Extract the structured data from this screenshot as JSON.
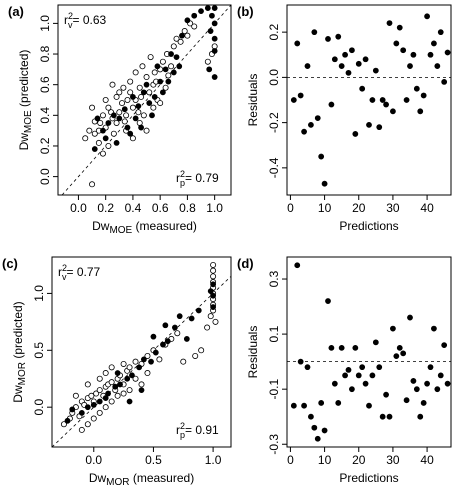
{
  "panels": [
    {
      "key": "a",
      "tag": "(a)",
      "type": "scatter",
      "xlabel_main": "Dw",
      "xlabel_sub": "MOE",
      "xlabel_tail": " (measured)",
      "ylabel_main": "Dw",
      "ylabel_sub": "MOE",
      "ylabel_tail": " (predicted)",
      "xlim": [
        -0.15,
        1.12
      ],
      "ylim": [
        -0.12,
        1.12
      ],
      "xticks": [
        0.0,
        0.2,
        0.4,
        0.6,
        0.8,
        1.0
      ],
      "xticklabels": [
        "0.0",
        "0.2",
        "0.4",
        "0.6",
        "0.8",
        "1.0"
      ],
      "yticks": [
        0.0,
        0.2,
        0.4,
        0.6,
        0.8,
        1.0
      ],
      "yticklabels": [
        "0.0",
        "0.2",
        "0.4",
        "0.6",
        "0.8",
        "1.0"
      ],
      "annot1": {
        "pre": "r",
        "sup": "2",
        "sub": "v",
        "val": "= 0.63"
      },
      "annot2": {
        "pre": "r",
        "sup": "2",
        "sub": "p",
        "val": "= 0.79"
      },
      "open_points": [
        [
          0.1,
          -0.05
        ],
        [
          0.15,
          0.3
        ],
        [
          0.12,
          0.36
        ],
        [
          0.18,
          0.4
        ],
        [
          0.2,
          0.32
        ],
        [
          0.22,
          0.45
        ],
        [
          0.25,
          0.38
        ],
        [
          0.28,
          0.35
        ],
        [
          0.3,
          0.42
        ],
        [
          0.32,
          0.48
        ],
        [
          0.35,
          0.4
        ],
        [
          0.38,
          0.55
        ],
        [
          0.4,
          0.45
        ],
        [
          0.42,
          0.5
        ],
        [
          0.45,
          0.58
        ],
        [
          0.48,
          0.4
        ],
        [
          0.5,
          0.65
        ],
        [
          0.52,
          0.55
        ],
        [
          0.55,
          0.6
        ],
        [
          0.58,
          0.5
        ],
        [
          0.6,
          0.7
        ],
        [
          0.62,
          0.75
        ],
        [
          0.65,
          0.8
        ],
        [
          0.68,
          0.72
        ],
        [
          0.7,
          0.85
        ],
        [
          0.72,
          0.9
        ],
        [
          0.75,
          0.88
        ],
        [
          0.78,
          0.95
        ],
        [
          0.8,
          0.92
        ],
        [
          0.82,
          1.0
        ],
        [
          0.85,
          0.98
        ],
        [
          0.95,
          0.75
        ],
        [
          0.98,
          0.8
        ],
        [
          1.0,
          0.85
        ],
        [
          0.05,
          0.25
        ],
        [
          0.08,
          0.3
        ],
        [
          0.15,
          0.22
        ],
        [
          0.2,
          0.5
        ],
        [
          0.25,
          0.6
        ],
        [
          0.3,
          0.55
        ],
        [
          0.35,
          0.3
        ],
        [
          0.4,
          0.25
        ],
        [
          0.45,
          0.35
        ],
        [
          0.5,
          0.3
        ],
        [
          0.55,
          0.45
        ],
        [
          0.6,
          0.48
        ],
        [
          0.18,
          0.15
        ],
        [
          0.22,
          0.2
        ],
        [
          0.38,
          0.62
        ],
        [
          0.42,
          0.68
        ],
        [
          0.28,
          0.52
        ],
        [
          0.33,
          0.58
        ],
        [
          0.47,
          0.72
        ],
        [
          0.53,
          0.78
        ],
        [
          0.1,
          0.45
        ],
        [
          0.12,
          0.28
        ],
        [
          0.26,
          0.28
        ],
        [
          0.36,
          0.5
        ],
        [
          0.44,
          0.42
        ],
        [
          0.57,
          0.62
        ],
        [
          0.64,
          0.58
        ],
        [
          0.16,
          0.35
        ],
        [
          0.24,
          0.42
        ],
        [
          0.34,
          0.36
        ],
        [
          0.46,
          0.52
        ],
        [
          0.56,
          0.68
        ],
        [
          0.66,
          0.66
        ]
      ],
      "filled_points": [
        [
          0.14,
          0.38
        ],
        [
          0.18,
          0.3
        ],
        [
          0.22,
          0.35
        ],
        [
          0.26,
          0.4
        ],
        [
          0.3,
          0.38
        ],
        [
          0.34,
          0.44
        ],
        [
          0.36,
          0.32
        ],
        [
          0.4,
          0.52
        ],
        [
          0.44,
          0.46
        ],
        [
          0.48,
          0.55
        ],
        [
          0.52,
          0.48
        ],
        [
          0.56,
          0.52
        ],
        [
          0.6,
          0.62
        ],
        [
          0.64,
          0.7
        ],
        [
          0.68,
          0.8
        ],
        [
          0.72,
          0.78
        ],
        [
          0.76,
          0.92
        ],
        [
          0.8,
          1.02
        ],
        [
          0.85,
          1.05
        ],
        [
          0.9,
          1.08
        ],
        [
          0.95,
          1.1
        ],
        [
          1.0,
          1.1
        ],
        [
          0.98,
          1.05
        ],
        [
          1.0,
          1.0
        ],
        [
          0.97,
          0.95
        ],
        [
          1.0,
          0.9
        ],
        [
          1.0,
          0.82
        ],
        [
          0.96,
          0.7
        ],
        [
          1.0,
          0.65
        ],
        [
          0.12,
          0.18
        ],
        [
          0.2,
          0.25
        ],
        [
          0.28,
          0.22
        ],
        [
          0.42,
          0.38
        ],
        [
          0.5,
          0.6
        ],
        [
          0.58,
          0.72
        ],
        [
          0.7,
          0.68
        ],
        [
          0.38,
          0.28
        ],
        [
          0.46,
          0.32
        ],
        [
          0.54,
          0.4
        ],
        [
          0.62,
          0.55
        ],
        [
          0.66,
          0.62
        ],
        [
          0.74,
          0.72
        ]
      ]
    },
    {
      "key": "b",
      "tag": "(b)",
      "type": "scatter",
      "xlabel_main": "Predictions",
      "ylabel_main": "Residuals",
      "xlim": [
        -1,
        47
      ],
      "ylim": [
        -0.52,
        0.32
      ],
      "xticks": [
        0,
        10,
        20,
        30,
        40
      ],
      "xticklabels": [
        "0",
        "10",
        "20",
        "30",
        "40"
      ],
      "yticks": [
        -0.4,
        -0.2,
        0.0,
        0.2
      ],
      "yticklabels": [
        "-0.4",
        "-0.2",
        "0.0",
        "0.2"
      ],
      "hline": 0,
      "filled_points": [
        [
          1,
          -0.1
        ],
        [
          2,
          0.15
        ],
        [
          3,
          -0.08
        ],
        [
          4,
          -0.24
        ],
        [
          5,
          0.05
        ],
        [
          6,
          -0.21
        ],
        [
          7,
          0.2
        ],
        [
          8,
          -0.18
        ],
        [
          9,
          -0.35
        ],
        [
          10,
          -0.47
        ],
        [
          11,
          0.17
        ],
        [
          12,
          -0.12
        ],
        [
          13,
          0.08
        ],
        [
          14,
          0.18
        ],
        [
          15,
          0.05
        ],
        [
          16,
          0.1
        ],
        [
          17,
          0.02
        ],
        [
          18,
          0.12
        ],
        [
          19,
          -0.25
        ],
        [
          20,
          0.06
        ],
        [
          21,
          -0.05
        ],
        [
          22,
          0.08
        ],
        [
          23,
          -0.21
        ],
        [
          24,
          -0.1
        ],
        [
          25,
          0.03
        ],
        [
          26,
          -0.22
        ],
        [
          27,
          -0.1
        ],
        [
          28,
          -0.12
        ],
        [
          29,
          0.24
        ],
        [
          30,
          -0.15
        ],
        [
          31,
          0.15
        ],
        [
          32,
          0.22
        ],
        [
          33,
          0.12
        ],
        [
          34,
          -0.1
        ],
        [
          35,
          0.05
        ],
        [
          36,
          0.1
        ],
        [
          37,
          -0.05
        ],
        [
          38,
          -0.15
        ],
        [
          39,
          -0.08
        ],
        [
          40,
          0.27
        ],
        [
          41,
          0.1
        ],
        [
          42,
          0.15
        ],
        [
          43,
          0.05
        ],
        [
          44,
          0.2
        ],
        [
          45,
          -0.02
        ],
        [
          46,
          0.11
        ]
      ]
    },
    {
      "key": "c",
      "tag": "(c)",
      "type": "scatter",
      "xlabel_main": "Dw",
      "xlabel_sub": "MOR",
      "xlabel_tail": " (measured)",
      "ylabel_main": "Dw",
      "ylabel_sub": "MOR",
      "ylabel_tail": " (predicted)",
      "xlim": [
        -0.35,
        1.15
      ],
      "ylim": [
        -0.35,
        1.32
      ],
      "xticks": [
        0.0,
        0.5,
        1.0
      ],
      "xticklabels": [
        "0.0",
        "0.5",
        "1.0"
      ],
      "yticks": [
        0.0,
        0.5,
        1.0
      ],
      "yticklabels": [
        "0.0",
        "0.5",
        "1.0"
      ],
      "annot1": {
        "pre": "r",
        "sup": "2",
        "sub": "v",
        "val": "= 0.77"
      },
      "annot2": {
        "pre": "r",
        "sup": "2",
        "sub": "p",
        "val": "= 0.91"
      },
      "open_points": [
        [
          -0.25,
          -0.15
        ],
        [
          -0.2,
          -0.1
        ],
        [
          -0.18,
          -0.05
        ],
        [
          -0.15,
          0.0
        ],
        [
          -0.12,
          -0.08
        ],
        [
          -0.1,
          0.05
        ],
        [
          -0.08,
          0.02
        ],
        [
          -0.05,
          0.08
        ],
        [
          -0.02,
          0.1
        ],
        [
          0.0,
          0.05
        ],
        [
          0.02,
          0.12
        ],
        [
          0.05,
          0.15
        ],
        [
          0.08,
          0.1
        ],
        [
          0.1,
          0.18
        ],
        [
          0.12,
          0.2
        ],
        [
          0.15,
          0.22
        ],
        [
          0.18,
          0.15
        ],
        [
          0.2,
          0.25
        ],
        [
          0.22,
          0.28
        ],
        [
          0.25,
          0.2
        ],
        [
          0.28,
          0.32
        ],
        [
          0.3,
          0.35
        ],
        [
          0.35,
          0.4
        ],
        [
          0.4,
          0.38
        ],
        [
          0.45,
          0.45
        ],
        [
          0.5,
          0.5
        ],
        [
          0.55,
          0.42
        ],
        [
          0.6,
          0.55
        ],
        [
          0.65,
          0.6
        ],
        [
          0.7,
          0.65
        ],
        [
          1.0,
          1.25
        ],
        [
          1.0,
          1.2
        ],
        [
          1.0,
          1.15
        ],
        [
          1.0,
          1.1
        ],
        [
          1.0,
          1.05
        ],
        [
          1.0,
          1.0
        ],
        [
          1.0,
          0.95
        ],
        [
          1.0,
          0.9
        ],
        [
          1.0,
          0.85
        ],
        [
          0.98,
          0.8
        ],
        [
          1.02,
          0.75
        ],
        [
          0.95,
          0.7
        ],
        [
          -0.1,
          -0.2
        ],
        [
          -0.05,
          -0.15
        ],
        [
          0.0,
          -0.1
        ],
        [
          0.05,
          -0.05
        ],
        [
          0.1,
          0.0
        ],
        [
          0.15,
          0.05
        ],
        [
          0.2,
          0.1
        ],
        [
          0.25,
          0.12
        ],
        [
          0.3,
          0.15
        ],
        [
          -0.15,
          0.1
        ],
        [
          -0.05,
          0.2
        ],
        [
          0.05,
          0.25
        ],
        [
          0.1,
          0.3
        ],
        [
          0.35,
          0.25
        ],
        [
          0.4,
          0.2
        ],
        [
          0.15,
          0.35
        ],
        [
          0.25,
          0.38
        ],
        [
          0.45,
          0.3
        ],
        [
          0.85,
          0.45
        ],
        [
          0.9,
          0.5
        ],
        [
          0.75,
          0.4
        ]
      ],
      "filled_points": [
        [
          -0.22,
          -0.12
        ],
        [
          -0.18,
          -0.02
        ],
        [
          -0.1,
          -0.05
        ],
        [
          -0.05,
          0.0
        ],
        [
          0.0,
          0.02
        ],
        [
          0.05,
          0.05
        ],
        [
          0.1,
          0.08
        ],
        [
          0.12,
          0.12
        ],
        [
          0.18,
          0.18
        ],
        [
          0.22,
          0.2
        ],
        [
          0.28,
          0.25
        ],
        [
          0.32,
          0.28
        ],
        [
          0.38,
          0.35
        ],
        [
          0.42,
          0.42
        ],
        [
          0.48,
          0.4
        ],
        [
          0.52,
          0.48
        ],
        [
          0.58,
          0.55
        ],
        [
          0.62,
          0.58
        ],
        [
          0.68,
          0.7
        ],
        [
          0.72,
          0.8
        ],
        [
          0.78,
          0.6
        ],
        [
          0.82,
          0.78
        ],
        [
          0.88,
          0.85
        ],
        [
          1.0,
          1.08
        ],
        [
          1.0,
          0.98
        ],
        [
          1.0,
          0.88
        ],
        [
          0.98,
          1.02
        ],
        [
          0.6,
          0.72
        ],
        [
          0.3,
          0.05
        ],
        [
          0.5,
          0.62
        ],
        [
          0.2,
          0.3
        ],
        [
          0.4,
          0.15
        ]
      ]
    },
    {
      "key": "d",
      "tag": "(d)",
      "type": "scatter",
      "xlabel_main": "Predictions",
      "ylabel_main": "Residuals",
      "xlim": [
        -1,
        47
      ],
      "ylim": [
        -0.31,
        0.38
      ],
      "xticks": [
        0,
        10,
        20,
        30,
        40
      ],
      "xticklabels": [
        "0",
        "10",
        "20",
        "30",
        "40"
      ],
      "yticks": [
        -0.3,
        -0.1,
        0.1,
        0.3
      ],
      "yticklabels": [
        "-0.3",
        "-0.1",
        "0.1",
        "0.3"
      ],
      "hline": 0,
      "filled_points": [
        [
          1,
          -0.16
        ],
        [
          2,
          0.35
        ],
        [
          3,
          0.0
        ],
        [
          4,
          -0.16
        ],
        [
          5,
          -0.02
        ],
        [
          6,
          -0.2
        ],
        [
          7,
          -0.24
        ],
        [
          8,
          -0.28
        ],
        [
          9,
          -0.15
        ],
        [
          10,
          -0.25
        ],
        [
          11,
          0.22
        ],
        [
          12,
          0.05
        ],
        [
          13,
          -0.08
        ],
        [
          14,
          -0.15
        ],
        [
          15,
          0.05
        ],
        [
          16,
          -0.05
        ],
        [
          17,
          -0.03
        ],
        [
          18,
          -0.1
        ],
        [
          19,
          0.05
        ],
        [
          20,
          -0.05
        ],
        [
          21,
          -0.02
        ],
        [
          22,
          -0.08
        ],
        [
          23,
          -0.16
        ],
        [
          24,
          -0.05
        ],
        [
          25,
          0.07
        ],
        [
          26,
          -0.02
        ],
        [
          27,
          -0.2
        ],
        [
          28,
          -0.12
        ],
        [
          29,
          -0.2
        ],
        [
          30,
          0.12
        ],
        [
          31,
          0.02
        ],
        [
          32,
          0.05
        ],
        [
          33,
          0.03
        ],
        [
          34,
          -0.14
        ],
        [
          35,
          0.16
        ],
        [
          36,
          -0.07
        ],
        [
          37,
          -0.1
        ],
        [
          38,
          -0.2
        ],
        [
          39,
          -0.15
        ],
        [
          40,
          -0.08
        ],
        [
          41,
          -0.02
        ],
        [
          42,
          0.12
        ],
        [
          43,
          -0.1
        ],
        [
          44,
          -0.05
        ],
        [
          45,
          0.06
        ],
        [
          46,
          -0.08
        ]
      ]
    }
  ]
}
